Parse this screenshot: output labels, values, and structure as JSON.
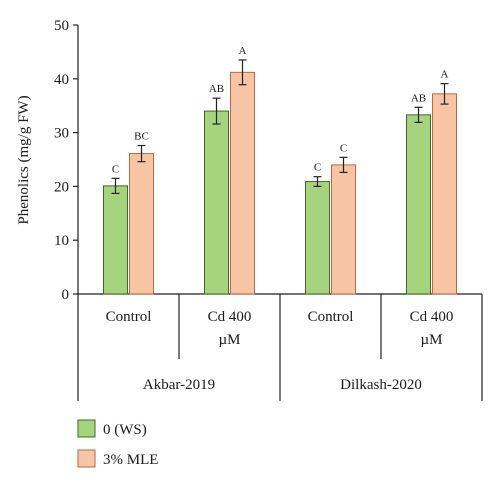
{
  "chart_data": {
    "type": "bar",
    "ylabel": "Phenolics (mg/g FW)",
    "ylim": [
      0,
      50
    ],
    "yticks": [
      0,
      10,
      20,
      30,
      40,
      50
    ],
    "grid": false,
    "legend_position": "bottom-left",
    "groups": [
      {
        "name": "Akbar-2019",
        "categories": [
          {
            "label": [
              "Control"
            ],
            "values": [
              20.1,
              26.1
            ],
            "errors": [
              1.4,
              1.5
            ],
            "letters": [
              "C",
              "BC"
            ]
          },
          {
            "label": [
              "Cd 400",
              "µM"
            ],
            "values": [
              34.0,
              41.2
            ],
            "errors": [
              2.4,
              2.3
            ],
            "letters": [
              "AB",
              "A"
            ]
          }
        ]
      },
      {
        "name": "Dilkash-2020",
        "categories": [
          {
            "label": [
              "Control"
            ],
            "values": [
              20.9,
              24.0
            ],
            "errors": [
              0.9,
              1.4
            ],
            "letters": [
              "C",
              "C"
            ]
          },
          {
            "label": [
              "Cd 400",
              "µM"
            ],
            "values": [
              33.3,
              37.2
            ],
            "errors": [
              1.4,
              1.9
            ],
            "letters": [
              "AB",
              "A"
            ]
          }
        ]
      }
    ],
    "series": [
      {
        "name": "0 (WS)",
        "color": "#a6d47e",
        "stroke": "#3f6a26"
      },
      {
        "name": "3% MLE",
        "color": "#f7c4a4",
        "stroke": "#b5694a"
      }
    ]
  }
}
